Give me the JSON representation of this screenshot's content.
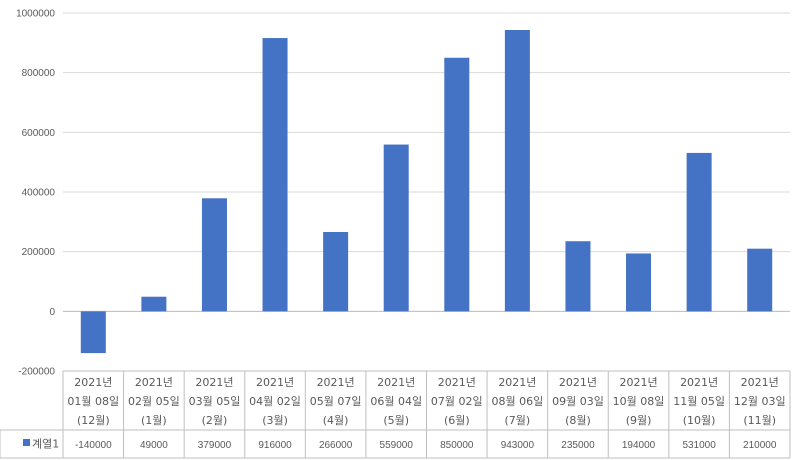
{
  "chart_data": {
    "type": "bar",
    "categories": [
      [
        "2021년",
        "01월 08일",
        "(12월)"
      ],
      [
        "2021년",
        "02월 05일",
        "(1월)"
      ],
      [
        "2021년",
        "03월 05일",
        "(2월)"
      ],
      [
        "2021년",
        "04월 02일",
        "(3월)"
      ],
      [
        "2021년",
        "05월 07일",
        "(4월)"
      ],
      [
        "2021년",
        "06월 04일",
        "(5월)"
      ],
      [
        "2021년",
        "07월 02일",
        "(6월)"
      ],
      [
        "2021년",
        "08월 06일",
        "(7월)"
      ],
      [
        "2021년",
        "09월 03일",
        "(8월)"
      ],
      [
        "2021년",
        "10월 08일",
        "(9월)"
      ],
      [
        "2021년",
        "11월 05일",
        "(10월)"
      ],
      [
        "2021년",
        "12월 03일",
        "(11월)"
      ]
    ],
    "series": [
      {
        "name": "계열1",
        "values": [
          -140000,
          49000,
          379000,
          916000,
          266000,
          559000,
          850000,
          943000,
          235000,
          194000,
          531000,
          210000
        ]
      }
    ],
    "ylim": [
      -200000,
      1000000
    ],
    "yticks": [
      -200000,
      0,
      200000,
      400000,
      600000,
      800000,
      1000000
    ],
    "grid": true,
    "legend": "data-table",
    "colors": {
      "bar": "#4472C4",
      "grid": "#D9D9D9",
      "axis": "#BFBFBF",
      "text": "#595959"
    }
  }
}
